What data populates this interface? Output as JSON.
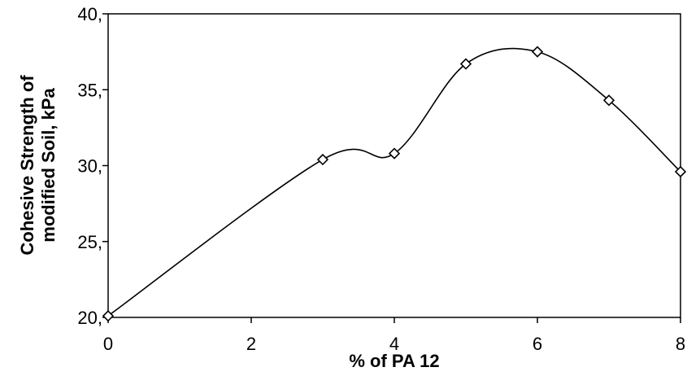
{
  "chart_data": {
    "type": "line",
    "title": "",
    "xlabel": "% of PA 12",
    "ylabel_line1": "Cohesive Strength of",
    "ylabel_line2": "modified Soil, kPa",
    "x": [
      0,
      3,
      4,
      5,
      6,
      7,
      8
    ],
    "y": [
      20.1,
      30.4,
      30.8,
      36.7,
      37.5,
      34.3,
      29.6
    ],
    "xlim": [
      0,
      8
    ],
    "ylim": [
      20,
      40
    ],
    "xticks": [
      "0",
      "2",
      "4",
      "6",
      "8"
    ],
    "yticks": [
      "20,",
      "25,",
      "30,",
      "35,",
      "40,"
    ],
    "marker": "diamond-open",
    "line_style": "smooth",
    "grid": false,
    "legend": "none",
    "colors": {
      "line": "#000000",
      "marker_fill": "#ffffff"
    }
  }
}
